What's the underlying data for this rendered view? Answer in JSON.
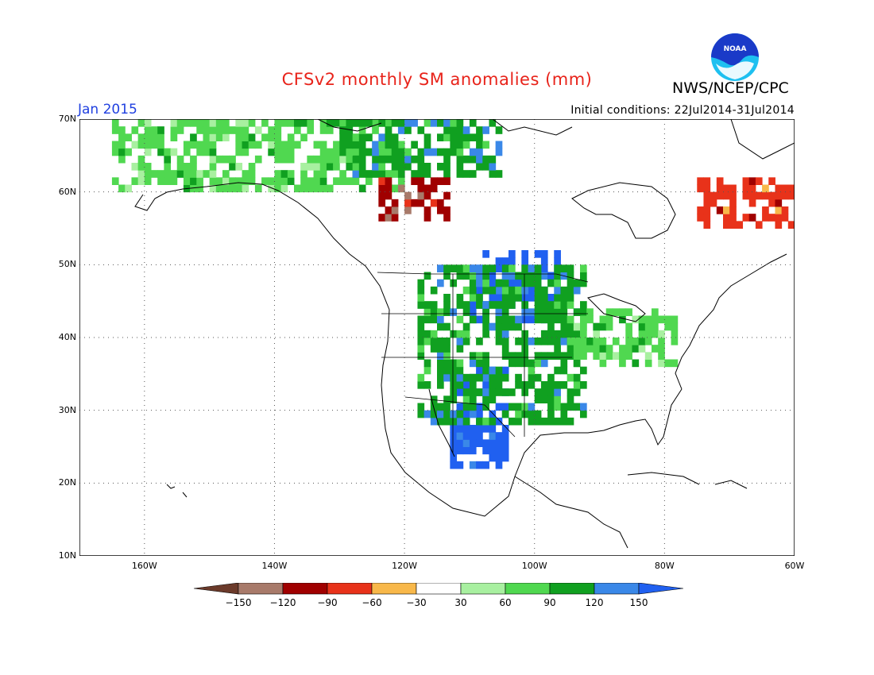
{
  "title": "CFSv2 monthly SM anomalies (mm)",
  "organization": "NWS/NCEP/CPC",
  "logo_text": "NOAA",
  "month_label": "Jan 2015",
  "initial_conditions": "Initial conditions: 22Jul2014-31Jul2014",
  "map": {
    "lat_range": [
      10,
      70
    ],
    "lon_range": [
      -170,
      -60
    ],
    "lat_ticks": [
      {
        "value": 70,
        "label": "70N"
      },
      {
        "value": 60,
        "label": "60N"
      },
      {
        "value": 50,
        "label": "50N"
      },
      {
        "value": 40,
        "label": "40N"
      },
      {
        "value": 30,
        "label": "30N"
      },
      {
        "value": 20,
        "label": "20N"
      },
      {
        "value": 10,
        "label": "10N"
      }
    ],
    "lon_ticks": [
      {
        "value": -160,
        "label": "160W"
      },
      {
        "value": -140,
        "label": "140W"
      },
      {
        "value": -120,
        "label": "120W"
      },
      {
        "value": -100,
        "label": "100W"
      },
      {
        "value": -80,
        "label": "80W"
      },
      {
        "value": -60,
        "label": "60W"
      }
    ],
    "grid": "dotted"
  },
  "legend": {
    "colors": [
      "#6b3a2a",
      "#a87a6a",
      "#a00000",
      "#e8321a",
      "#f8b84a",
      "#ffffff",
      "#a8f0a0",
      "#50d850",
      "#10a020",
      "#3a88e8",
      "#2060f0"
    ],
    "labels": [
      "-150",
      "-120",
      "-90",
      "-60",
      "-30",
      "30",
      "60",
      "90",
      "120",
      "150"
    ]
  },
  "anomaly_regions": [
    {
      "name": "northern-plains-wet",
      "level": 150,
      "lat": [
        42,
        52
      ],
      "lon": [
        -110,
        -96
      ]
    },
    {
      "name": "southwest-wet",
      "level": 150,
      "lat": [
        22,
        36
      ],
      "lon": [
        -113,
        -104
      ]
    },
    {
      "name": "great-plains-moist",
      "level": 90,
      "lat": [
        28,
        50
      ],
      "lon": [
        -118,
        -92
      ]
    },
    {
      "name": "ohio-valley-moist",
      "level": 60,
      "lat": [
        36,
        44
      ],
      "lon": [
        -95,
        -78
      ]
    },
    {
      "name": "alaska-interior-moist",
      "level": 60,
      "lat": [
        60,
        70
      ],
      "lon": [
        -165,
        -120
      ]
    },
    {
      "name": "canada-northwest-moist",
      "level": 90,
      "lat": [
        62,
        70
      ],
      "lon": [
        -130,
        -105
      ]
    },
    {
      "name": "quebec-labrador-dry",
      "level": -60,
      "lat": [
        55,
        62
      ],
      "lon": [
        -75,
        -60
      ]
    },
    {
      "name": "yukon-dry",
      "level": -90,
      "lat": [
        56,
        62
      ],
      "lon": [
        -124,
        -113
      ]
    }
  ]
}
